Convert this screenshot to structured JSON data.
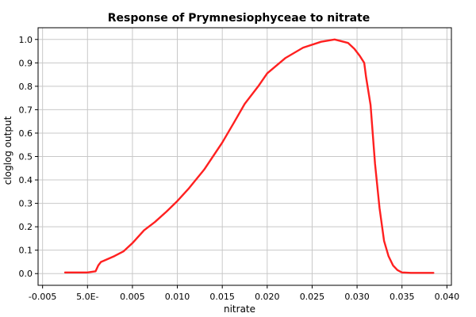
{
  "chart_data": {
    "type": "line",
    "title": "Response of Prymnesiophyceae to nitrate",
    "xlabel": "nitrate",
    "ylabel": "cloglog output",
    "xlim": [
      -0.0055,
      0.0405
    ],
    "ylim": [
      -0.05,
      1.05
    ],
    "grid": true,
    "colors": {
      "series": "#ff2020",
      "grid": "#c8c8c8",
      "axis": "#000000"
    },
    "x_ticks": [
      {
        "value": -0.005,
        "label": "-0.005"
      },
      {
        "value": 0.0,
        "label": "5.0E-"
      },
      {
        "value": 0.005,
        "label": "0.005"
      },
      {
        "value": 0.01,
        "label": "0.010"
      },
      {
        "value": 0.015,
        "label": "0.015"
      },
      {
        "value": 0.02,
        "label": "0.020"
      },
      {
        "value": 0.025,
        "label": "0.025"
      },
      {
        "value": 0.03,
        "label": "0.030"
      },
      {
        "value": 0.035,
        "label": "0.035"
      },
      {
        "value": 0.04,
        "label": "0.040"
      }
    ],
    "y_ticks": [
      {
        "value": 0.0,
        "label": "0.0"
      },
      {
        "value": 0.1,
        "label": "0.1"
      },
      {
        "value": 0.2,
        "label": "0.2"
      },
      {
        "value": 0.3,
        "label": "0.3"
      },
      {
        "value": 0.4,
        "label": "0.4"
      },
      {
        "value": 0.5,
        "label": "0.5"
      },
      {
        "value": 0.6,
        "label": "0.6"
      },
      {
        "value": 0.7,
        "label": "0.7"
      },
      {
        "value": 0.8,
        "label": "0.8"
      },
      {
        "value": 0.9,
        "label": "0.9"
      },
      {
        "value": 1.0,
        "label": "1.0"
      }
    ],
    "series": [
      {
        "x": [
          -0.0025,
          -0.001,
          0.0,
          0.0009,
          0.0012,
          0.0015,
          0.002,
          0.003,
          0.004,
          0.005,
          0.0063,
          0.0075,
          0.0088,
          0.01,
          0.0113,
          0.013,
          0.015,
          0.0163,
          0.0175,
          0.019,
          0.02,
          0.022,
          0.024,
          0.026,
          0.0275,
          0.029,
          0.0297,
          0.0303,
          0.0308,
          0.031,
          0.0315,
          0.032,
          0.0325,
          0.033,
          0.0335,
          0.034,
          0.0345,
          0.035,
          0.036,
          0.0385
        ],
        "y": [
          0.005,
          0.005,
          0.005,
          0.01,
          0.035,
          0.05,
          0.058,
          0.075,
          0.095,
          0.13,
          0.185,
          0.22,
          0.265,
          0.31,
          0.365,
          0.445,
          0.56,
          0.645,
          0.725,
          0.8,
          0.855,
          0.92,
          0.965,
          0.99,
          1.0,
          0.985,
          0.96,
          0.93,
          0.9,
          0.84,
          0.72,
          0.47,
          0.28,
          0.14,
          0.075,
          0.035,
          0.015,
          0.005,
          0.003,
          0.003
        ]
      }
    ]
  }
}
